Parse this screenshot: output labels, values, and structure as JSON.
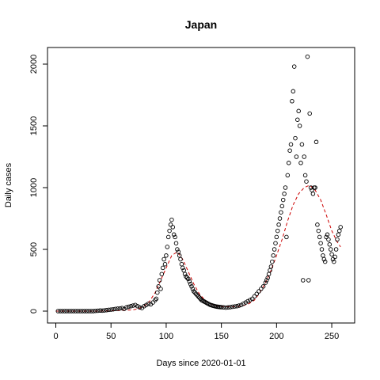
{
  "chart_data": {
    "type": "scatter",
    "title": "Japan",
    "xlabel": "Days since 2020-01-01",
    "ylabel": "Daily cases",
    "xlim": [
      0,
      260
    ],
    "ylim": [
      0,
      2100
    ],
    "xticks": [
      0,
      50,
      100,
      150,
      200,
      250
    ],
    "yticks": [
      0,
      500,
      1000,
      1500,
      2000
    ],
    "point_color": "#000000",
    "trend_color": "#cc0000",
    "trend_style": "dashed",
    "series": [
      {
        "kind": "points",
        "x": [
          2,
          4,
          6,
          8,
          10,
          12,
          14,
          16,
          18,
          20,
          22,
          24,
          26,
          28,
          30,
          32,
          34,
          36,
          38,
          40,
          42,
          44,
          46,
          48,
          50,
          52,
          54,
          56,
          58,
          60,
          62,
          64,
          66,
          68,
          70,
          72,
          74,
          76,
          78,
          80,
          82,
          84,
          86,
          88,
          90,
          91,
          92,
          93,
          94,
          95,
          96,
          97,
          98,
          99,
          100,
          101,
          102,
          103,
          104,
          105,
          106,
          107,
          108,
          109,
          110,
          111,
          112,
          113,
          114,
          115,
          116,
          117,
          118,
          119,
          120,
          121,
          122,
          123,
          124,
          125,
          126,
          127,
          128,
          129,
          130,
          131,
          132,
          133,
          134,
          135,
          136,
          137,
          138,
          139,
          140,
          141,
          142,
          143,
          144,
          145,
          146,
          147,
          148,
          149,
          150,
          152,
          154,
          156,
          158,
          160,
          162,
          164,
          166,
          168,
          170,
          172,
          174,
          176,
          178,
          180,
          182,
          184,
          186,
          188,
          190,
          191,
          192,
          193,
          194,
          195,
          196,
          197,
          198,
          199,
          200,
          201,
          202,
          203,
          204,
          205,
          206,
          207,
          208,
          209,
          210,
          211,
          212,
          213,
          214,
          215,
          216,
          217,
          218,
          219,
          220,
          221,
          222,
          223,
          224,
          225,
          226,
          227,
          228,
          229,
          230,
          231,
          232,
          233,
          234,
          235,
          236,
          237,
          238,
          239,
          240,
          241,
          242,
          243,
          244,
          245,
          246,
          247,
          248,
          249,
          250,
          251,
          252,
          253,
          254,
          255,
          256,
          257,
          258
        ],
        "y": [
          0,
          0,
          0,
          0,
          0,
          0,
          0,
          0,
          0,
          0,
          0,
          0,
          0,
          0,
          0,
          0,
          0,
          2,
          3,
          5,
          4,
          6,
          8,
          10,
          12,
          15,
          18,
          20,
          22,
          25,
          18,
          30,
          35,
          40,
          45,
          50,
          40,
          30,
          25,
          40,
          50,
          60,
          55,
          70,
          90,
          100,
          150,
          200,
          250,
          180,
          300,
          350,
          420,
          380,
          450,
          520,
          600,
          650,
          700,
          740,
          680,
          620,
          600,
          550,
          500,
          480,
          450,
          420,
          380,
          350,
          330,
          300,
          280,
          270,
          260,
          240,
          220,
          200,
          180,
          160,
          150,
          140,
          130,
          120,
          110,
          100,
          90,
          85,
          80,
          75,
          70,
          65,
          60,
          55,
          50,
          48,
          45,
          42,
          40,
          38,
          36,
          35,
          34,
          33,
          32,
          30,
          28,
          30,
          32,
          35,
          38,
          40,
          45,
          50,
          60,
          70,
          80,
          90,
          100,
          120,
          140,
          160,
          180,
          200,
          230,
          250,
          270,
          300,
          330,
          360,
          400,
          450,
          500,
          550,
          600,
          650,
          700,
          750,
          800,
          850,
          900,
          950,
          1000,
          600,
          1100,
          1200,
          1300,
          1350,
          1700,
          1780,
          1980,
          1400,
          1250,
          1550,
          1620,
          1500,
          1200,
          1350,
          250,
          1250,
          1100,
          1050,
          2060,
          250,
          1600,
          1000,
          980,
          950,
          1000,
          1000,
          1370,
          700,
          650,
          600,
          550,
          500,
          450,
          420,
          400,
          600,
          620,
          580,
          540,
          500,
          460,
          420,
          400,
          440,
          500,
          580,
          620,
          650,
          680
        ]
      },
      {
        "kind": "trend",
        "x": [
          0,
          20,
          40,
          50,
          60,
          70,
          75,
          80,
          85,
          90,
          95,
          100,
          105,
          110,
          115,
          120,
          125,
          130,
          135,
          140,
          145,
          150,
          155,
          160,
          165,
          170,
          175,
          180,
          185,
          190,
          195,
          200,
          205,
          210,
          215,
          220,
          225,
          230,
          235,
          240,
          245,
          250,
          255,
          258
        ],
        "y": [
          0,
          0,
          0,
          3,
          5,
          10,
          20,
          40,
          80,
          150,
          250,
          350,
          450,
          480,
          420,
          320,
          220,
          140,
          90,
          60,
          45,
          38,
          35,
          35,
          38,
          45,
          60,
          90,
          150,
          230,
          330,
          450,
          580,
          730,
          860,
          950,
          1000,
          1020,
          980,
          900,
          780,
          650,
          560,
          520
        ]
      }
    ]
  }
}
